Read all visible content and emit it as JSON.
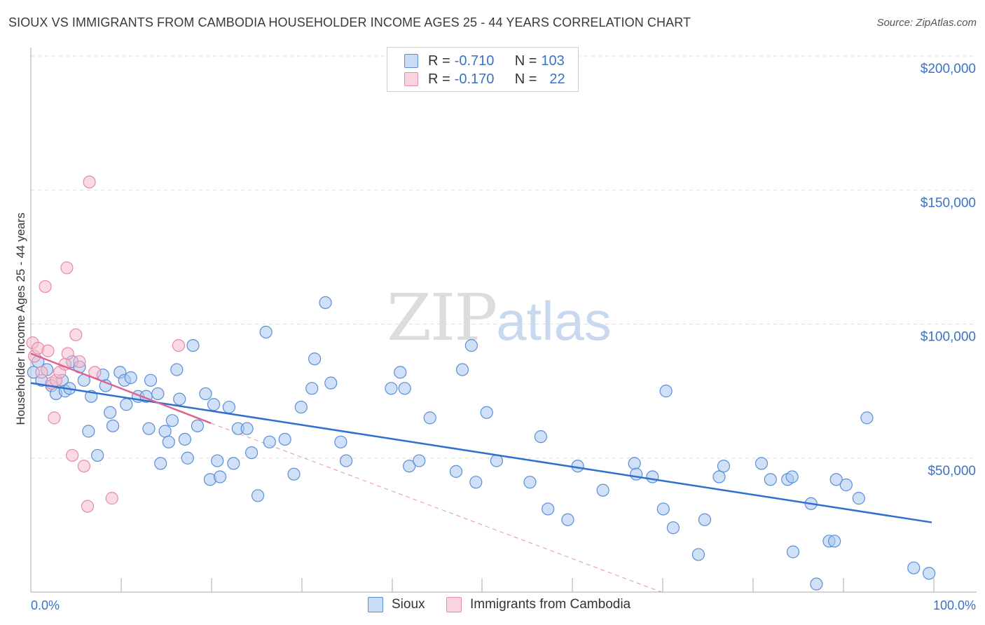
{
  "header": {
    "title": "SIOUX VS IMMIGRANTS FROM CAMBODIA HOUSEHOLDER INCOME AGES 25 - 44 YEARS CORRELATION CHART",
    "source": "Source: ZipAtlas.com"
  },
  "watermark": {
    "zip": "ZIP",
    "atlas": "atlas"
  },
  "legend": {
    "rows": [
      {
        "r_label": "R = ",
        "r_value": "-0.710",
        "n_label": "N = ",
        "n_value": "103",
        "color": "#a9c8f0"
      },
      {
        "r_label": "R = ",
        "r_value": "-0.170",
        "n_label": "N = ",
        "n_value": "22",
        "color": "#f6bccd"
      }
    ]
  },
  "bottom_legend": {
    "series1": "Sioux",
    "series2": "Immigrants from Cambodia"
  },
  "colors": {
    "sioux_fill": "#a9c8f0",
    "sioux_stroke": "#5b8ed6",
    "sioux_line": "#2f6fce",
    "cambodia_fill": "#f6bccd",
    "cambodia_stroke": "#e68aa6",
    "cambodia_line": "#e0628e",
    "grid": "#dddddd",
    "axis": "#aaaaaa"
  },
  "chart_data": {
    "type": "scatter",
    "ylabel": "Householder Income Ages 25 - 44 years",
    "xlim": [
      0,
      100
    ],
    "ylim": [
      0,
      200000
    ],
    "x_ticks": [
      "0.0%",
      "100.0%"
    ],
    "y_ticks": [
      {
        "value": 50000,
        "label": "$50,000"
      },
      {
        "value": 100000,
        "label": "$100,000"
      },
      {
        "value": 150000,
        "label": "$150,000"
      },
      {
        "value": 200000,
        "label": "$200,000"
      }
    ],
    "series": [
      {
        "name": "Sioux",
        "r": -0.71,
        "n": 103,
        "trend": {
          "x": [
            0,
            100
          ],
          "y": [
            78000,
            26000
          ]
        },
        "points": [
          [
            0.3,
            82000
          ],
          [
            0.8,
            86000
          ],
          [
            1.2,
            79000
          ],
          [
            1.8,
            83000
          ],
          [
            2.3,
            77000
          ],
          [
            2.8,
            74000
          ],
          [
            3.5,
            79000
          ],
          [
            3.8,
            75000
          ],
          [
            4.3,
            76000
          ],
          [
            4.6,
            86000
          ],
          [
            5.4,
            84000
          ],
          [
            5.9,
            79000
          ],
          [
            6.4,
            60000
          ],
          [
            6.7,
            73000
          ],
          [
            7.4,
            51000
          ],
          [
            8.0,
            81000
          ],
          [
            8.3,
            77000
          ],
          [
            8.8,
            67000
          ],
          [
            9.1,
            62000
          ],
          [
            9.9,
            82000
          ],
          [
            10.4,
            79000
          ],
          [
            10.6,
            70000
          ],
          [
            11.1,
            80000
          ],
          [
            11.9,
            73000
          ],
          [
            12.8,
            73000
          ],
          [
            13.1,
            61000
          ],
          [
            13.3,
            79000
          ],
          [
            14.1,
            74000
          ],
          [
            14.4,
            48000
          ],
          [
            14.9,
            60000
          ],
          [
            15.3,
            56000
          ],
          [
            15.7,
            64000
          ],
          [
            16.2,
            83000
          ],
          [
            16.5,
            72000
          ],
          [
            17.1,
            57000
          ],
          [
            17.4,
            50000
          ],
          [
            18.0,
            92000
          ],
          [
            18.5,
            62000
          ],
          [
            19.4,
            74000
          ],
          [
            19.9,
            42000
          ],
          [
            20.3,
            70000
          ],
          [
            20.7,
            49000
          ],
          [
            21.0,
            43000
          ],
          [
            22.0,
            69000
          ],
          [
            22.5,
            48000
          ],
          [
            23.0,
            61000
          ],
          [
            24.0,
            61000
          ],
          [
            24.5,
            52000
          ],
          [
            25.2,
            36000
          ],
          [
            26.1,
            97000
          ],
          [
            26.5,
            56000
          ],
          [
            28.2,
            57000
          ],
          [
            29.2,
            44000
          ],
          [
            30.0,
            69000
          ],
          [
            31.2,
            76000
          ],
          [
            31.5,
            87000
          ],
          [
            32.7,
            108000
          ],
          [
            33.3,
            78000
          ],
          [
            34.4,
            56000
          ],
          [
            35.0,
            49000
          ],
          [
            40.0,
            76000
          ],
          [
            41.0,
            82000
          ],
          [
            41.5,
            76000
          ],
          [
            42.0,
            47000
          ],
          [
            43.1,
            49000
          ],
          [
            44.3,
            65000
          ],
          [
            47.2,
            45000
          ],
          [
            47.9,
            83000
          ],
          [
            48.9,
            92000
          ],
          [
            49.4,
            41000
          ],
          [
            50.6,
            67000
          ],
          [
            51.7,
            49000
          ],
          [
            55.4,
            41000
          ],
          [
            56.6,
            58000
          ],
          [
            57.4,
            31000
          ],
          [
            59.6,
            27000
          ],
          [
            60.7,
            47000
          ],
          [
            63.5,
            38000
          ],
          [
            67.0,
            48000
          ],
          [
            67.2,
            44000
          ],
          [
            69.0,
            43000
          ],
          [
            70.2,
            31000
          ],
          [
            70.5,
            75000
          ],
          [
            71.3,
            24000
          ],
          [
            74.1,
            14000
          ],
          [
            74.8,
            27000
          ],
          [
            76.4,
            43000
          ],
          [
            76.9,
            47000
          ],
          [
            81.1,
            48000
          ],
          [
            82.1,
            42000
          ],
          [
            84.0,
            42000
          ],
          [
            84.5,
            43000
          ],
          [
            84.6,
            15000
          ],
          [
            86.6,
            33000
          ],
          [
            87.2,
            3000
          ],
          [
            88.6,
            19000
          ],
          [
            89.2,
            19000
          ],
          [
            89.4,
            42000
          ],
          [
            90.5,
            40000
          ],
          [
            91.9,
            35000
          ],
          [
            92.8,
            65000
          ],
          [
            98.0,
            9000
          ],
          [
            99.7,
            7000
          ]
        ]
      },
      {
        "name": "Immigrants from Cambodia",
        "r": -0.17,
        "n": 22,
        "trend": {
          "x": [
            0,
            20
          ],
          "y": [
            89000,
            63000
          ]
        },
        "trend_extension": {
          "x": [
            20,
            70
          ],
          "y": [
            63000,
            0
          ]
        },
        "points": [
          [
            0.2,
            93000
          ],
          [
            0.4,
            88000
          ],
          [
            0.8,
            91000
          ],
          [
            1.2,
            82000
          ],
          [
            1.6,
            114000
          ],
          [
            1.9,
            90000
          ],
          [
            2.3,
            78000
          ],
          [
            2.8,
            79000
          ],
          [
            2.6,
            65000
          ],
          [
            3.2,
            82000
          ],
          [
            3.8,
            85000
          ],
          [
            4.0,
            121000
          ],
          [
            4.1,
            89000
          ],
          [
            4.6,
            51000
          ],
          [
            5.0,
            96000
          ],
          [
            5.4,
            86000
          ],
          [
            5.9,
            47000
          ],
          [
            6.3,
            32000
          ],
          [
            6.5,
            153000
          ],
          [
            7.1,
            82000
          ],
          [
            9.0,
            35000
          ],
          [
            16.4,
            92000
          ]
        ]
      }
    ]
  }
}
